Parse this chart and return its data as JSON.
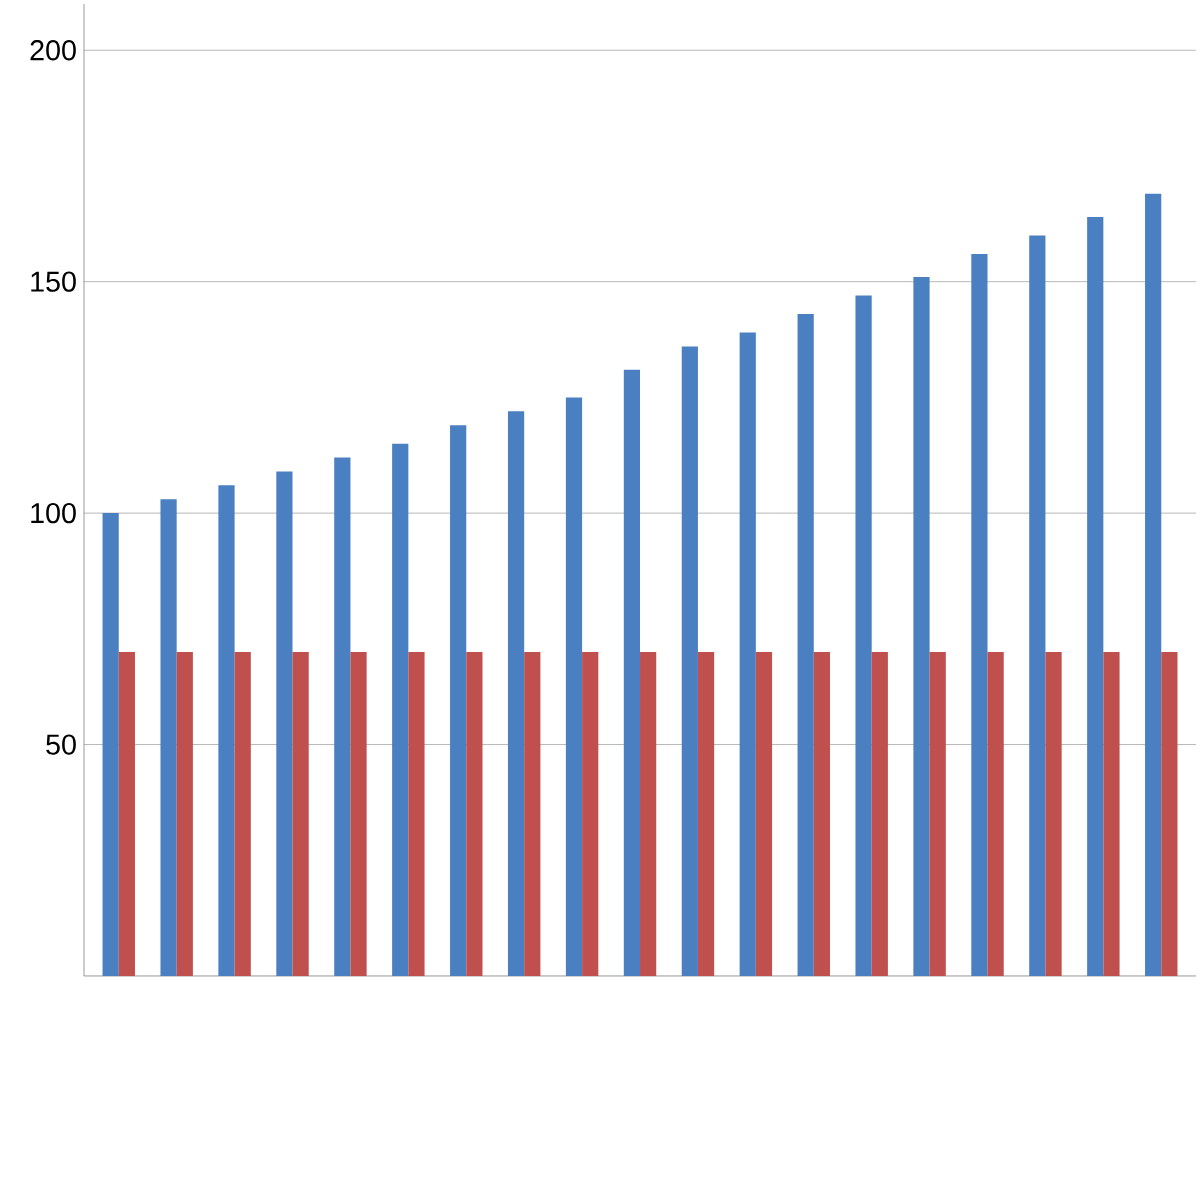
{
  "chart_data": {
    "type": "bar",
    "categories": [
      null,
      null,
      null,
      null,
      null,
      null,
      null,
      null,
      null,
      null,
      null,
      null,
      null,
      null,
      null,
      null,
      null,
      null,
      null
    ],
    "series": [
      {
        "color": "#4a7fc1",
        "values": [
          100,
          103,
          106,
          109,
          112,
          115,
          119,
          122,
          125,
          131,
          136,
          139,
          143,
          147,
          151,
          156,
          160,
          164,
          169
        ]
      },
      {
        "color": "#c0504d",
        "values": [
          70,
          70,
          70,
          70,
          70,
          70,
          70,
          70,
          70,
          70,
          70,
          70,
          70,
          70,
          70,
          70,
          70,
          70,
          70
        ]
      }
    ],
    "ylim": [
      0,
      210
    ],
    "yticks": [
      50,
      100,
      150,
      200
    ],
    "grid": "y"
  }
}
